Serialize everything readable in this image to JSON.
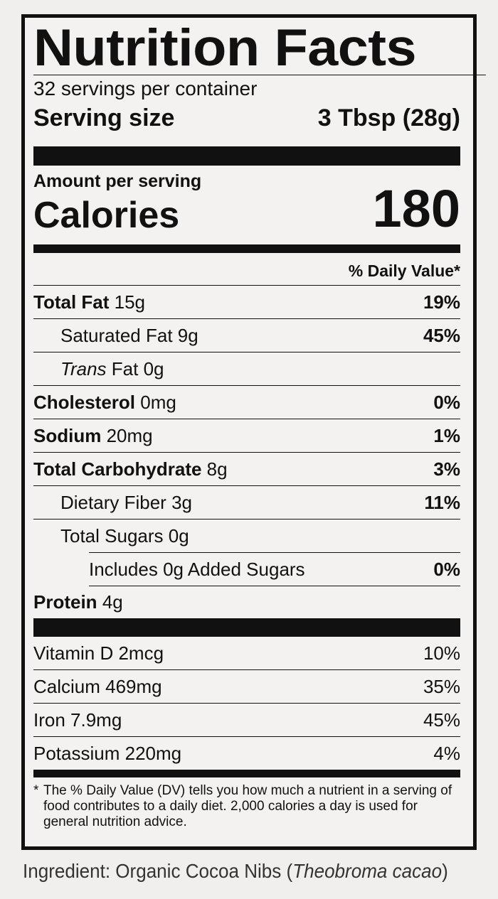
{
  "title": "Nutrition Facts",
  "servings": "32 servings per container",
  "serving_size": {
    "label": "Serving size",
    "value": "3 Tbsp (28g)"
  },
  "amount_per_serving": "Amount per serving",
  "calories": {
    "label": "Calories",
    "value": "180"
  },
  "dv_header": "% Daily Value*",
  "nutrients": [
    {
      "name": "Total Fat",
      "amount": "15g",
      "dv": "19%"
    },
    {
      "name": "Saturated Fat",
      "amount": "9g",
      "dv": "45%"
    },
    {
      "name_italic": "Trans",
      "name": "Fat",
      "amount": "0g"
    },
    {
      "name": "Cholesterol",
      "amount": "0mg",
      "dv": "0%"
    },
    {
      "name": "Sodium",
      "amount": "20mg",
      "dv": "1%"
    },
    {
      "name": "Total Carbohydrate",
      "amount": "8g",
      "dv": "3%"
    },
    {
      "name": "Dietary Fiber",
      "amount": "3g",
      "dv": "11%"
    },
    {
      "name": "Total Sugars",
      "amount": "0g"
    },
    {
      "name": "Includes 0g Added Sugars",
      "dv": "0%"
    },
    {
      "name": "Protein",
      "amount": "4g"
    }
  ],
  "vitamins": [
    {
      "name": "Vitamin D 2mcg",
      "dv": "10%"
    },
    {
      "name": "Calcium 469mg",
      "dv": "35%"
    },
    {
      "name": "Iron 7.9mg",
      "dv": "45%"
    },
    {
      "name": "Potassium 220mg",
      "dv": "4%"
    }
  ],
  "footnote": {
    "mark": "*",
    "text": "The % Daily Value (DV) tells you how much a nutrient in a serving of food contributes to a daily diet. 2,000 calories a day is used for general nutrition advice."
  },
  "ingredient": {
    "text": "Ingredient: Organic Cocoa Nibs (",
    "latin": "Theobroma cacao",
    "close": ")"
  }
}
